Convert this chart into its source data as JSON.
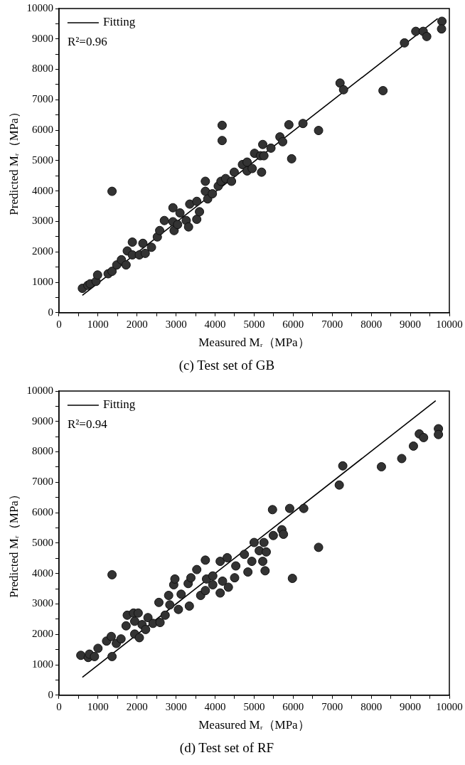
{
  "chart_data": [
    {
      "type": "scatter",
      "title": "(c) Test set of GB",
      "xlabel": "Measured Mᵣ（MPa）",
      "ylabel": "Predicted Mᵣ（MPa）",
      "annotations": [
        "R²=0.96"
      ],
      "legend": "top left",
      "marker": "circle",
      "grid": false,
      "xlim": [
        0,
        10000
      ],
      "ylim": [
        0,
        10000
      ],
      "xticks": [
        0,
        {
          "value": 500,
          "label": null
        },
        1000,
        {
          "value": 1500,
          "label": null
        },
        2000,
        {
          "value": 2500,
          "label": null
        },
        3000,
        {
          "value": 3500,
          "label": null
        },
        4000,
        {
          "value": 4500,
          "label": null
        },
        5000,
        {
          "value": 5500,
          "label": null
        },
        6000,
        {
          "value": 6500,
          "label": null
        },
        7000,
        {
          "value": 7500,
          "label": null
        },
        8000,
        {
          "value": 8500,
          "label": null
        },
        9000,
        {
          "value": 9500,
          "label": null
        },
        10000
      ],
      "yticks": [
        0,
        {
          "value": 500,
          "label": null
        },
        1000,
        {
          "value": 1500,
          "label": null
        },
        2000,
        {
          "value": 2500,
          "label": null
        },
        3000,
        {
          "value": 3500,
          "label": null
        },
        4000,
        {
          "value": 4500,
          "label": null
        },
        5000,
        {
          "value": 5500,
          "label": null
        },
        6000,
        {
          "value": 6500,
          "label": null
        },
        7000,
        {
          "value": 7500,
          "label": null
        },
        8000,
        {
          "value": 8500,
          "label": null
        },
        9000,
        {
          "value": 9500,
          "label": null
        },
        10000
      ],
      "series": [
        {
          "color": "#333333",
          "x": [
            600,
            740,
            800,
            950,
            990,
            1260,
            1360,
            1360,
            1480,
            1600,
            1720,
            1750,
            1880,
            1880,
            2060,
            2150,
            2210,
            2370,
            2520,
            2580,
            2700,
            2920,
            2950,
            2920,
            3040,
            3100,
            3260,
            3320,
            3350,
            3530,
            3530,
            3600,
            3750,
            3750,
            3810,
            3930,
            4080,
            4150,
            4180,
            4180,
            4270,
            4420,
            4490,
            4700,
            4820,
            4820,
            4950,
            5010,
            5160,
            5190,
            5220,
            5250,
            5430,
            5660,
            5730,
            5890,
            5960,
            6250,
            6650,
            7200,
            7290,
            8300,
            8850,
            9140,
            9330,
            9420,
            9810,
            9800
          ],
          "values": [
            800,
            900,
            950,
            1030,
            1240,
            1280,
            3990,
            1360,
            1570,
            1740,
            1570,
            2030,
            2320,
            1900,
            1900,
            2280,
            1950,
            2150,
            2490,
            2700,
            3030,
            3450,
            2700,
            2990,
            2900,
            3280,
            3030,
            2820,
            3570,
            3660,
            3070,
            3320,
            4320,
            3990,
            3740,
            3910,
            4160,
            4320,
            6160,
            5660,
            4410,
            4320,
            4620,
            4870,
            4950,
            4660,
            4740,
            5240,
            5160,
            4620,
            5530,
            5160,
            5410,
            5780,
            5620,
            6180,
            5060,
            6220,
            5990,
            7550,
            7330,
            7300,
            8870,
            9250,
            9250,
            9080,
            9580,
            9330
          ]
        },
        {
          "type": "line",
          "marker": "none",
          "name": "Fitting",
          "color": "#000000",
          "x": [
            600,
            9700
          ],
          "values": [
            570,
            9670
          ]
        }
      ]
    },
    {
      "type": "scatter",
      "title": "(d) Test set of RF",
      "xlabel": "Measured Mᵣ（MPa）",
      "ylabel": "Predicted Mᵣ（MPa）",
      "annotations": [
        "R²=0.94"
      ],
      "legend": "top left",
      "marker": "circle",
      "grid": false,
      "xlim": [
        0,
        10000
      ],
      "ylim": [
        0,
        10000
      ],
      "xticks": [
        0,
        {
          "value": 500,
          "label": null
        },
        1000,
        {
          "value": 1500,
          "label": null
        },
        2000,
        {
          "value": 2500,
          "label": null
        },
        3000,
        {
          "value": 3500,
          "label": null
        },
        4000,
        {
          "value": 4500,
          "label": null
        },
        5000,
        {
          "value": 5500,
          "label": null
        },
        6000,
        {
          "value": 6500,
          "label": null
        },
        7000,
        {
          "value": 7500,
          "label": null
        },
        8000,
        {
          "value": 8500,
          "label": null
        },
        9000,
        {
          "value": 9500,
          "label": null
        },
        10000
      ],
      "yticks": [
        0,
        {
          "value": 500,
          "label": null
        },
        1000,
        {
          "value": 1500,
          "label": null
        },
        2000,
        {
          "value": 2500,
          "label": null
        },
        3000,
        {
          "value": 3500,
          "label": null
        },
        4000,
        {
          "value": 4500,
          "label": null
        },
        5000,
        {
          "value": 5500,
          "label": null
        },
        6000,
        {
          "value": 6500,
          "label": null
        },
        7000,
        {
          "value": 7500,
          "label": null
        },
        8000,
        {
          "value": 8500,
          "label": null
        },
        9000,
        {
          "value": 9500,
          "label": null
        },
        10000
      ],
      "series": [
        {
          "color": "#333333",
          "x": [
            560,
            750,
            780,
            910,
            1000,
            1220,
            1340,
            1360,
            1360,
            1470,
            1590,
            1720,
            1750,
            1910,
            1940,
            2030,
            1940,
            2060,
            2130,
            2280,
            2220,
            2410,
            2560,
            2590,
            2720,
            2810,
            2840,
            2940,
            2970,
            3060,
            3130,
            3310,
            3340,
            3380,
            3530,
            3630,
            3750,
            3750,
            3780,
            3940,
            3940,
            4130,
            4130,
            4190,
            4310,
            4340,
            4500,
            4530,
            4750,
            4840,
            4940,
            5000,
            5130,
            5220,
            5250,
            5280,
            5310,
            5470,
            5490,
            5710,
            5750,
            5910,
            5980,
            6270,
            6650,
            7180,
            7270,
            8260,
            8780,
            9080,
            9230,
            9340,
            9720,
            9720
          ],
          "values": [
            1310,
            1240,
            1350,
            1270,
            1540,
            1780,
            1930,
            3960,
            1270,
            1700,
            1850,
            2280,
            2630,
            2700,
            2430,
            2700,
            2010,
            1890,
            2320,
            2550,
            2160,
            2360,
            3050,
            2390,
            2630,
            3280,
            2970,
            3630,
            3820,
            2820,
            3320,
            3670,
            2930,
            3860,
            4130,
            3280,
            4440,
            3440,
            3820,
            3920,
            3630,
            4400,
            3360,
            3750,
            4520,
            3550,
            3860,
            4250,
            4630,
            4050,
            4400,
            5020,
            4750,
            4400,
            5020,
            4090,
            4710,
            6100,
            5250,
            5440,
            5290,
            6140,
            3840,
            6140,
            4860,
            6910,
            7540,
            7510,
            7780,
            8190,
            8590,
            8470,
            8760,
            8570
          ]
        },
        {
          "type": "line",
          "marker": "none",
          "name": "Fitting",
          "color": "#000000",
          "x": [
            600,
            9650
          ],
          "values": [
            590,
            9680
          ]
        }
      ]
    }
  ]
}
